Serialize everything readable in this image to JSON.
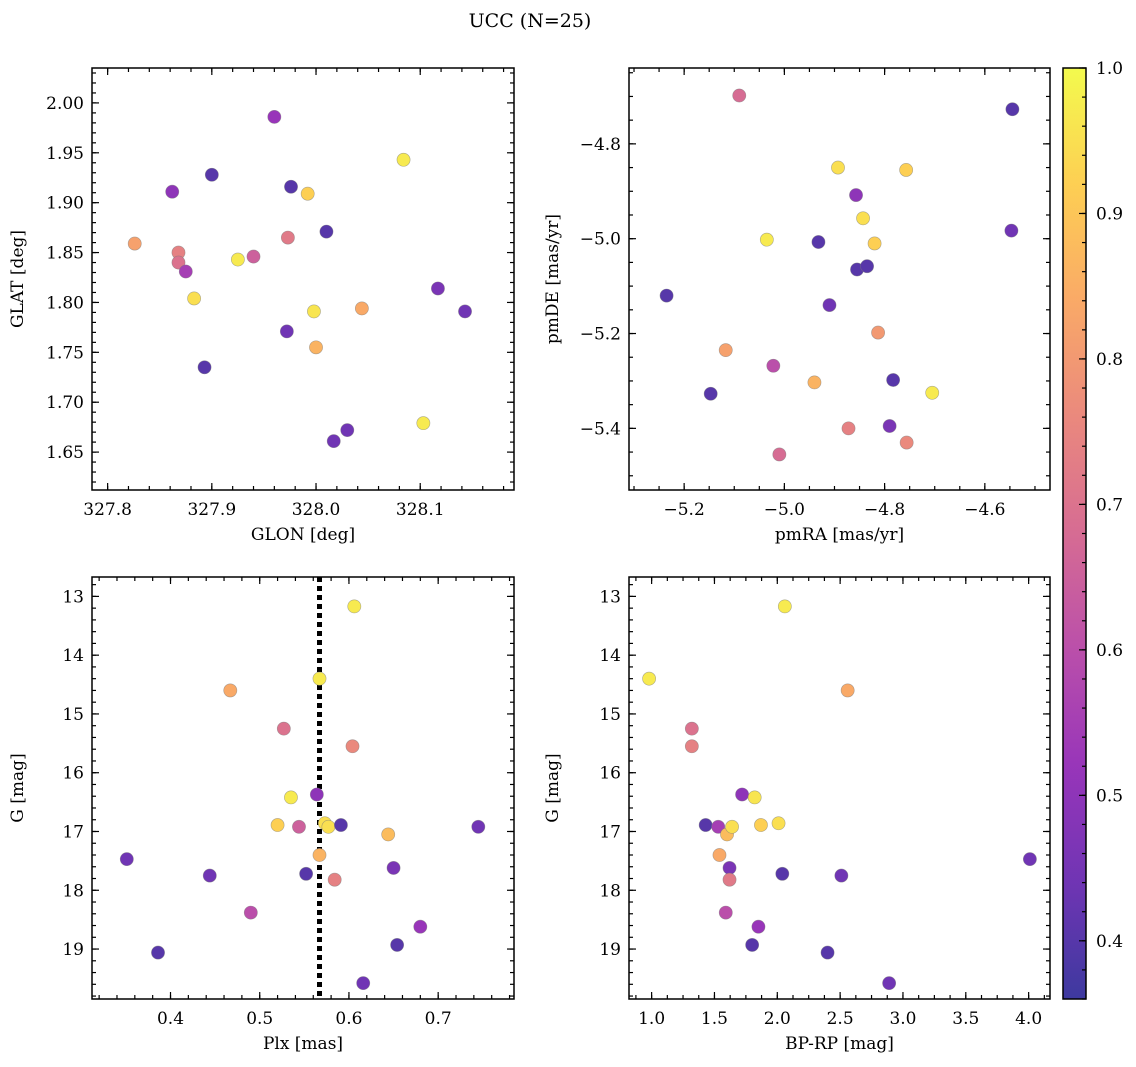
{
  "title": "UCC (N=25)",
  "colorbar": {
    "min": 0.36,
    "max": 1.0,
    "ticks": [
      0.4,
      0.5,
      0.6,
      0.7,
      0.8,
      0.9,
      1.0
    ],
    "tick_labels": [
      "0.4",
      "0.5",
      "0.6",
      "0.7",
      "0.8",
      "0.9",
      "1.0"
    ],
    "colormap": "plasma"
  },
  "chart_data": [
    {
      "type": "scatter",
      "xlabel": "GLON [deg]",
      "ylabel": "GLAT [deg]",
      "xlim": [
        327.785,
        328.19
      ],
      "ylim": [
        1.612,
        2.035
      ],
      "xticks": [
        327.8,
        327.9,
        328.0,
        328.1
      ],
      "xtick_labels": [
        "327.8",
        "327.9",
        "328.0",
        "328.1"
      ],
      "yticks": [
        1.65,
        1.7,
        1.75,
        1.8,
        1.85,
        1.9,
        1.95,
        2.0
      ],
      "ytick_labels": [
        "1.65",
        "1.70",
        "1.75",
        "1.80",
        "1.85",
        "1.90",
        "1.95",
        "2.00"
      ],
      "y_inverted": false,
      "points": [
        {
          "x": 327.826,
          "y": 1.859,
          "c": 0.82
        },
        {
          "x": 327.862,
          "y": 1.911,
          "c": 0.5
        },
        {
          "x": 327.868,
          "y": 1.85,
          "c": 0.74
        },
        {
          "x": 327.868,
          "y": 1.84,
          "c": 0.7
        },
        {
          "x": 327.875,
          "y": 1.831,
          "c": 0.55
        },
        {
          "x": 327.883,
          "y": 1.804,
          "c": 0.95
        },
        {
          "x": 327.893,
          "y": 1.735,
          "c": 0.4
        },
        {
          "x": 327.9,
          "y": 1.928,
          "c": 0.4
        },
        {
          "x": 327.925,
          "y": 1.843,
          "c": 0.97
        },
        {
          "x": 327.94,
          "y": 1.846,
          "c": 0.65
        },
        {
          "x": 327.96,
          "y": 1.986,
          "c": 0.52
        },
        {
          "x": 327.972,
          "y": 1.771,
          "c": 0.44
        },
        {
          "x": 327.973,
          "y": 1.865,
          "c": 0.72
        },
        {
          "x": 327.976,
          "y": 1.916,
          "c": 0.4
        },
        {
          "x": 327.992,
          "y": 1.909,
          "c": 0.92
        },
        {
          "x": 327.998,
          "y": 1.791,
          "c": 0.96
        },
        {
          "x": 328.0,
          "y": 1.755,
          "c": 0.86
        },
        {
          "x": 328.01,
          "y": 1.871,
          "c": 0.4
        },
        {
          "x": 328.017,
          "y": 1.661,
          "c": 0.44
        },
        {
          "x": 328.03,
          "y": 1.672,
          "c": 0.44
        },
        {
          "x": 328.044,
          "y": 1.794,
          "c": 0.84
        },
        {
          "x": 328.084,
          "y": 1.943,
          "c": 0.97
        },
        {
          "x": 328.103,
          "y": 1.679,
          "c": 0.97
        },
        {
          "x": 328.117,
          "y": 1.814,
          "c": 0.46
        },
        {
          "x": 328.143,
          "y": 1.791,
          "c": 0.44
        }
      ]
    },
    {
      "type": "scatter",
      "xlabel": "pmRA [mas/yr]",
      "ylabel": "pmDE [mas/yr]",
      "xlim": [
        -5.31,
        -4.47
      ],
      "ylim": [
        -5.53,
        -4.64
      ],
      "xticks": [
        -5.2,
        -5.0,
        -4.8,
        -4.6
      ],
      "xtick_labels": [
        "−5.2",
        "−5.0",
        "−4.8",
        "−4.6"
      ],
      "yticks": [
        -5.4,
        -5.2,
        -5.0,
        -4.8
      ],
      "ytick_labels": [
        "−5.4",
        "−5.2",
        "−5.0",
        "−4.8"
      ],
      "y_inverted": false,
      "points": [
        {
          "x": -5.235,
          "y": -5.12,
          "c": 0.4
        },
        {
          "x": -5.147,
          "y": -5.327,
          "c": 0.4
        },
        {
          "x": -5.117,
          "y": -5.235,
          "c": 0.82
        },
        {
          "x": -5.09,
          "y": -4.698,
          "c": 0.68
        },
        {
          "x": -5.035,
          "y": -5.002,
          "c": 0.97
        },
        {
          "x": -5.022,
          "y": -5.268,
          "c": 0.6
        },
        {
          "x": -5.01,
          "y": -5.455,
          "c": 0.68
        },
        {
          "x": -4.94,
          "y": -5.303,
          "c": 0.86
        },
        {
          "x": -4.932,
          "y": -5.007,
          "c": 0.4
        },
        {
          "x": -4.91,
          "y": -5.14,
          "c": 0.44
        },
        {
          "x": -4.893,
          "y": -4.85,
          "c": 0.95
        },
        {
          "x": -4.872,
          "y": -5.4,
          "c": 0.74
        },
        {
          "x": -4.857,
          "y": -4.908,
          "c": 0.5
        },
        {
          "x": -4.855,
          "y": -5.065,
          "c": 0.4
        },
        {
          "x": -4.843,
          "y": -4.957,
          "c": 0.95
        },
        {
          "x": -4.835,
          "y": -5.058,
          "c": 0.4
        },
        {
          "x": -4.82,
          "y": -5.01,
          "c": 0.92
        },
        {
          "x": -4.813,
          "y": -5.198,
          "c": 0.8
        },
        {
          "x": -4.79,
          "y": -5.395,
          "c": 0.46
        },
        {
          "x": -4.783,
          "y": -5.298,
          "c": 0.4
        },
        {
          "x": -4.757,
          "y": -4.855,
          "c": 0.92
        },
        {
          "x": -4.756,
          "y": -5.43,
          "c": 0.76
        },
        {
          "x": -4.705,
          "y": -5.325,
          "c": 0.97
        },
        {
          "x": -4.545,
          "y": -4.727,
          "c": 0.4
        },
        {
          "x": -4.547,
          "y": -4.983,
          "c": 0.44
        }
      ]
    },
    {
      "type": "scatter",
      "xlabel": "Plx [mas]",
      "ylabel": "G [mag]",
      "xlim": [
        0.312,
        0.785
      ],
      "ylim": [
        19.85,
        12.67
      ],
      "xticks": [
        0.4,
        0.5,
        0.6,
        0.7
      ],
      "xtick_labels": [
        "0.4",
        "0.5",
        "0.6",
        "0.7"
      ],
      "yticks": [
        13,
        14,
        15,
        16,
        17,
        18,
        19
      ],
      "ytick_labels": [
        "13",
        "14",
        "15",
        "16",
        "17",
        "18",
        "19"
      ],
      "y_inverted": true,
      "vline": 0.567,
      "points": [
        {
          "x": 0.351,
          "y": 17.47,
          "c": 0.44
        },
        {
          "x": 0.386,
          "y": 19.06,
          "c": 0.4
        },
        {
          "x": 0.444,
          "y": 17.75,
          "c": 0.44
        },
        {
          "x": 0.467,
          "y": 14.6,
          "c": 0.84
        },
        {
          "x": 0.49,
          "y": 18.38,
          "c": 0.6
        },
        {
          "x": 0.52,
          "y": 16.89,
          "c": 0.92
        },
        {
          "x": 0.527,
          "y": 15.25,
          "c": 0.7
        },
        {
          "x": 0.535,
          "y": 16.42,
          "c": 0.97
        },
        {
          "x": 0.544,
          "y": 16.92,
          "c": 0.65
        },
        {
          "x": 0.552,
          "y": 17.72,
          "c": 0.4
        },
        {
          "x": 0.564,
          "y": 16.37,
          "c": 0.5
        },
        {
          "x": 0.567,
          "y": 14.4,
          "c": 0.97
        },
        {
          "x": 0.567,
          "y": 17.4,
          "c": 0.86
        },
        {
          "x": 0.573,
          "y": 16.86,
          "c": 0.95
        },
        {
          "x": 0.577,
          "y": 16.92,
          "c": 0.95
        },
        {
          "x": 0.584,
          "y": 17.82,
          "c": 0.74
        },
        {
          "x": 0.591,
          "y": 16.89,
          "c": 0.4
        },
        {
          "x": 0.604,
          "y": 15.55,
          "c": 0.76
        },
        {
          "x": 0.606,
          "y": 13.17,
          "c": 0.97
        },
        {
          "x": 0.616,
          "y": 19.58,
          "c": 0.44
        },
        {
          "x": 0.644,
          "y": 17.05,
          "c": 0.88
        },
        {
          "x": 0.65,
          "y": 17.62,
          "c": 0.46
        },
        {
          "x": 0.654,
          "y": 18.93,
          "c": 0.4
        },
        {
          "x": 0.68,
          "y": 18.62,
          "c": 0.52
        },
        {
          "x": 0.745,
          "y": 16.92,
          "c": 0.44
        }
      ]
    },
    {
      "type": "scatter",
      "xlabel": "BP-RP [mag]",
      "ylabel": "G [mag]",
      "xlim": [
        0.82,
        4.17
      ],
      "ylim": [
        19.85,
        12.67
      ],
      "xticks": [
        1.0,
        1.5,
        2.0,
        2.5,
        3.0,
        3.5,
        4.0
      ],
      "xtick_labels": [
        "1.0",
        "1.5",
        "2.0",
        "2.5",
        "3.0",
        "3.5",
        "4.0"
      ],
      "yticks": [
        13,
        14,
        15,
        16,
        17,
        18,
        19
      ],
      "ytick_labels": [
        "13",
        "14",
        "15",
        "16",
        "17",
        "18",
        "19"
      ],
      "y_inverted": true,
      "points": [
        {
          "x": 0.98,
          "y": 14.4,
          "c": 0.97
        },
        {
          "x": 1.32,
          "y": 15.25,
          "c": 0.7
        },
        {
          "x": 1.32,
          "y": 15.55,
          "c": 0.74
        },
        {
          "x": 1.43,
          "y": 16.89,
          "c": 0.4
        },
        {
          "x": 1.53,
          "y": 16.92,
          "c": 0.55
        },
        {
          "x": 1.54,
          "y": 17.4,
          "c": 0.84
        },
        {
          "x": 1.59,
          "y": 18.38,
          "c": 0.6
        },
        {
          "x": 1.6,
          "y": 17.05,
          "c": 0.88
        },
        {
          "x": 1.62,
          "y": 17.62,
          "c": 0.46
        },
        {
          "x": 1.62,
          "y": 17.82,
          "c": 0.72
        },
        {
          "x": 1.64,
          "y": 16.92,
          "c": 0.95
        },
        {
          "x": 1.72,
          "y": 16.37,
          "c": 0.5
        },
        {
          "x": 1.8,
          "y": 18.93,
          "c": 0.4
        },
        {
          "x": 1.82,
          "y": 16.42,
          "c": 0.96
        },
        {
          "x": 1.85,
          "y": 18.62,
          "c": 0.52
        },
        {
          "x": 1.87,
          "y": 16.89,
          "c": 0.92
        },
        {
          "x": 2.01,
          "y": 16.86,
          "c": 0.95
        },
        {
          "x": 2.04,
          "y": 17.72,
          "c": 0.4
        },
        {
          "x": 2.06,
          "y": 13.17,
          "c": 0.97
        },
        {
          "x": 2.4,
          "y": 19.06,
          "c": 0.4
        },
        {
          "x": 2.51,
          "y": 17.75,
          "c": 0.44
        },
        {
          "x": 2.56,
          "y": 14.6,
          "c": 0.84
        },
        {
          "x": 2.89,
          "y": 19.58,
          "c": 0.44
        },
        {
          "x": 4.01,
          "y": 17.47,
          "c": 0.44
        }
      ]
    }
  ]
}
